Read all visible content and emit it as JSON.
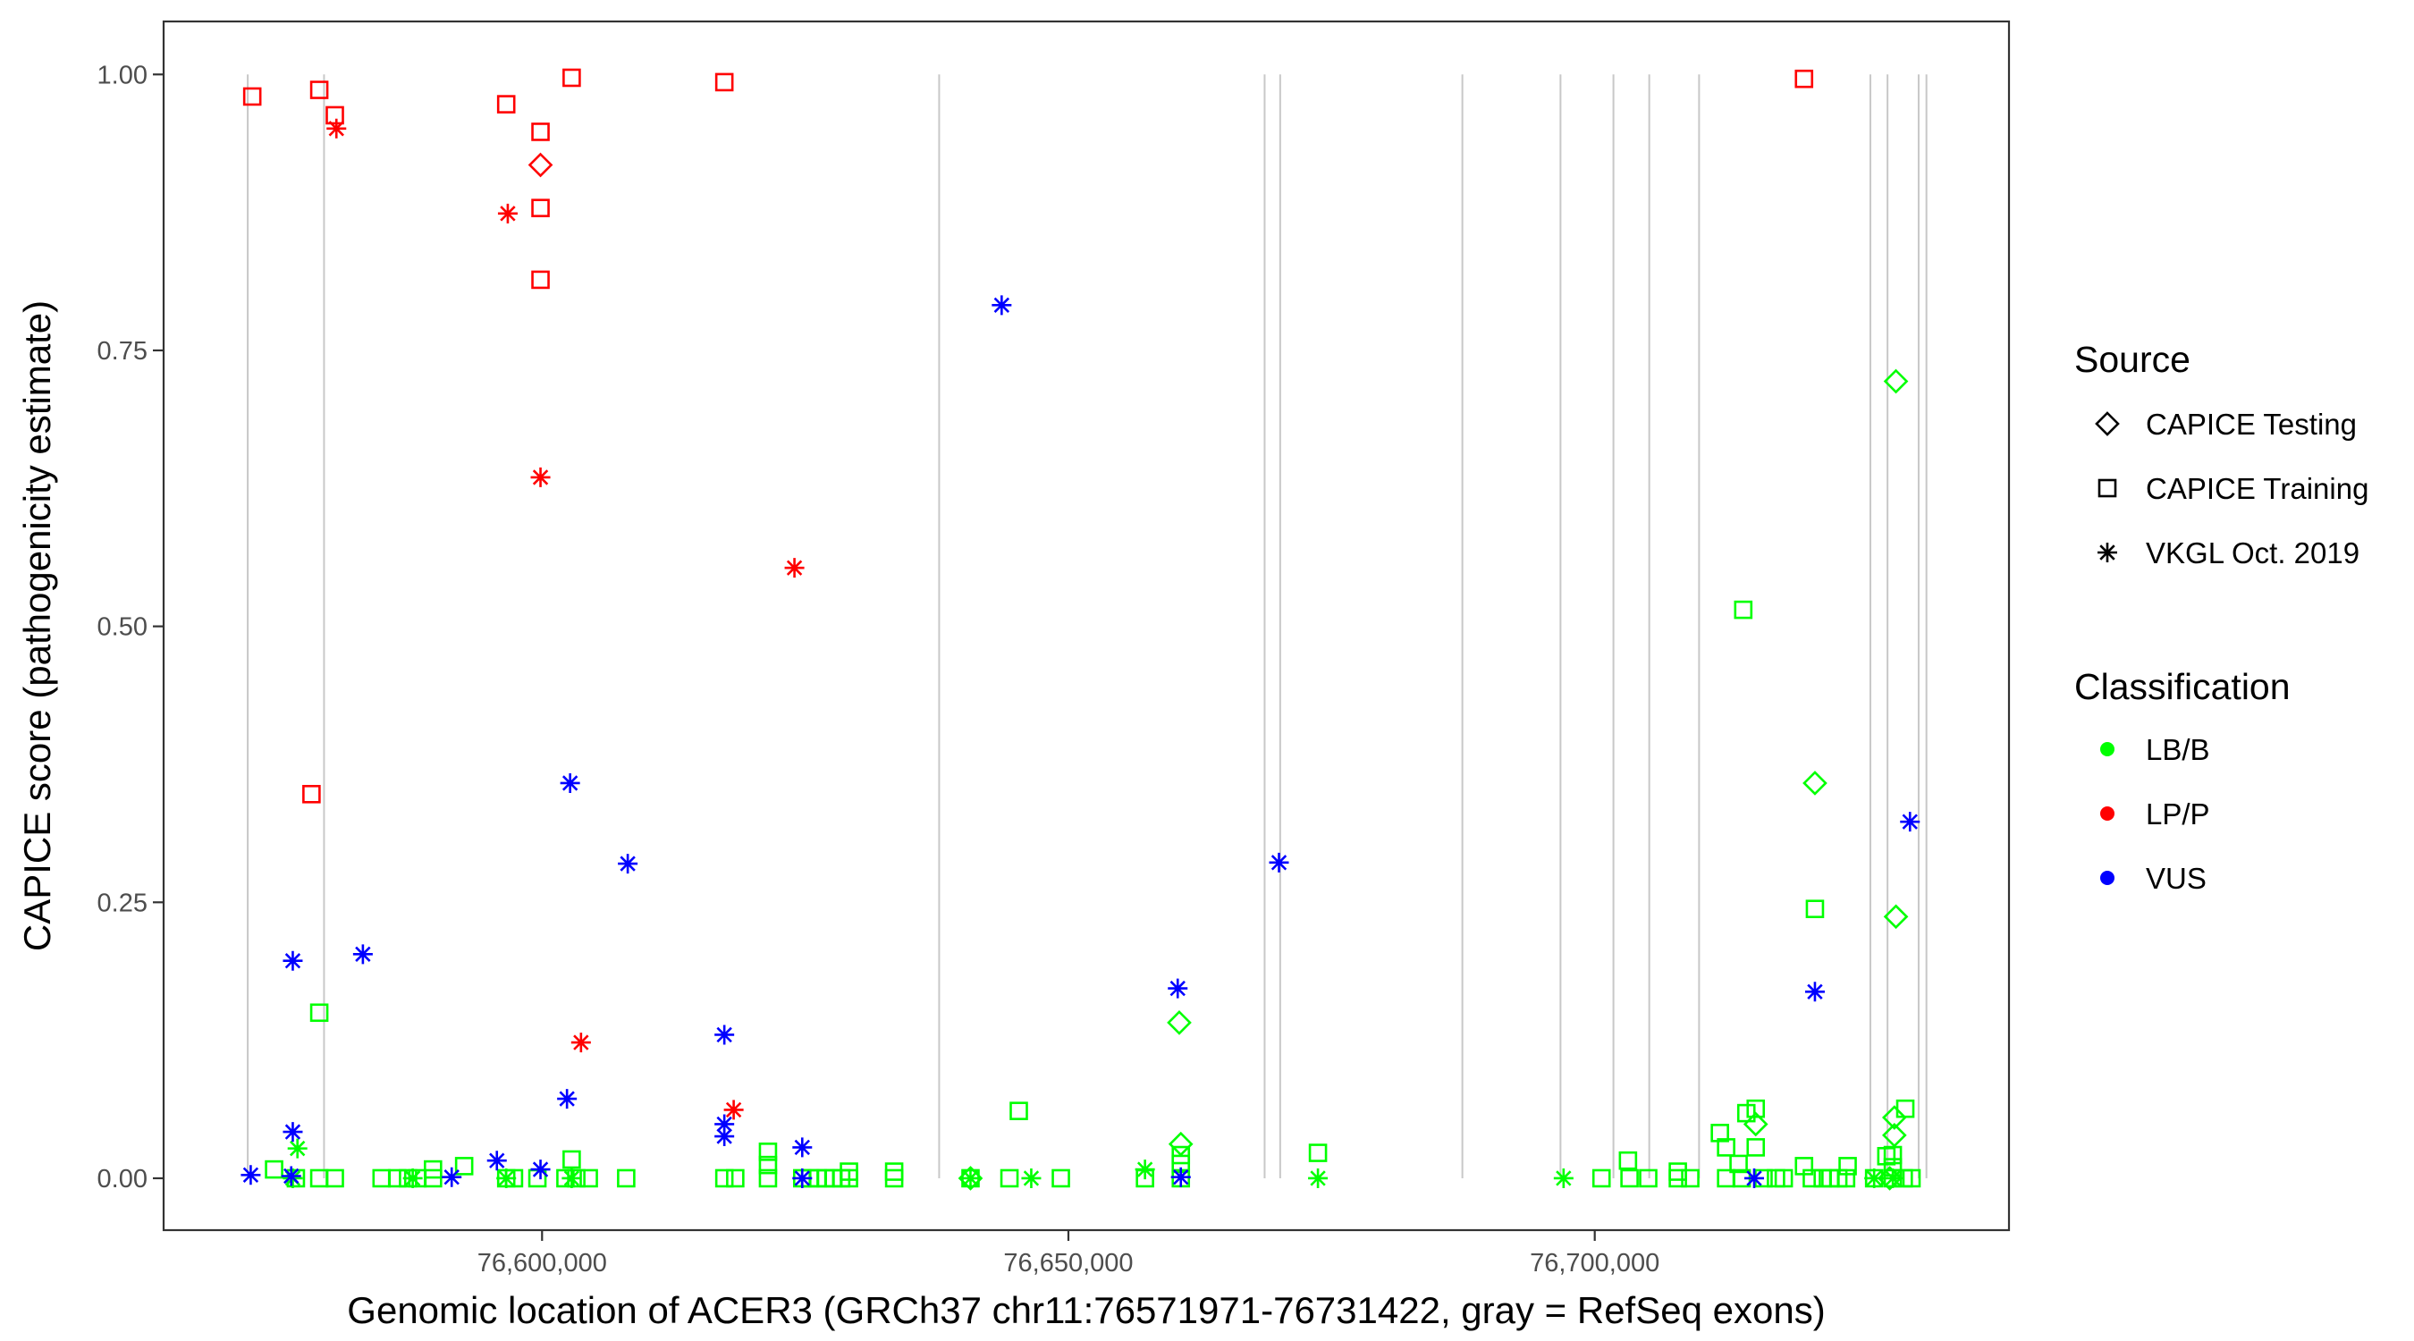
{
  "chart_data": {
    "type": "scatter",
    "xlabel": "Genomic location of ACER3 (GRCh37 chr11:76571971-76731422, gray = RefSeq exons)",
    "ylabel": "CAPICE score (pathogenicity estimate)",
    "xlim": [
      76564050,
      76739350
    ],
    "ylim": [
      -0.047,
      1.048
    ],
    "grid": false,
    "x_ticks": [
      {
        "value": 76600000,
        "label": "76,600,000"
      },
      {
        "value": 76650000,
        "label": "76,650,000"
      },
      {
        "value": 76700000,
        "label": "76,700,000"
      }
    ],
    "y_ticks": [
      {
        "value": 0,
        "label": "0.00"
      },
      {
        "value": 0.25,
        "label": "0.25"
      },
      {
        "value": 0.5,
        "label": "0.50"
      },
      {
        "value": 0.75,
        "label": "0.75"
      },
      {
        "value": 1,
        "label": "1.00"
      }
    ],
    "exon_color": "#C8C8C8",
    "exons": [
      76572041,
      76579290,
      76637722,
      76668639,
      76670118,
      76687426,
      76696746,
      76701775,
      76705178,
      76709911,
      76726183,
      76727811,
      76730769,
      76731509
    ],
    "legend": {
      "position": "right",
      "source_title": "Source",
      "sources": [
        {
          "name": "CAPICE Testing",
          "shape": "diamond"
        },
        {
          "name": "CAPICE Training",
          "shape": "square"
        },
        {
          "name": "VKGL Oct. 2019",
          "shape": "asterisk"
        }
      ],
      "classification_title": "Classification",
      "classes": [
        {
          "name": "LB/B",
          "color": "#00FF00"
        },
        {
          "name": "LP/P",
          "color": "#FF0000"
        },
        {
          "name": "VUS",
          "color": "#0000FF"
        }
      ]
    },
    "series": [
      {
        "source": "CAPICE Training",
        "classification": "LB/B",
        "points": [
          [
            76714108,
            0.515
          ],
          [
            76720916,
            0.244
          ],
          [
            76578836,
            0.15
          ],
          [
            76645288,
            0.061
          ],
          [
            76673704,
            0.023
          ],
          [
            76711888,
            0.041
          ],
          [
            76714400,
            0.059
          ],
          [
            76715292,
            0.063
          ],
          [
            76729500,
            0.063
          ],
          [
            76712480,
            0.028
          ],
          [
            76715292,
            0.028
          ],
          [
            76703156,
            0.016
          ],
          [
            76574544,
            0.008
          ],
          [
            76602812,
            0.017
          ],
          [
            76621460,
            0.024
          ],
          [
            76621460,
            0.012
          ],
          [
            76592600,
            0.011
          ],
          [
            76589640,
            0.008
          ],
          [
            76629156,
            0.006
          ],
          [
            76633448,
            0.006
          ],
          [
            76660680,
            0.021
          ],
          [
            76660680,
            0.013
          ],
          [
            76713664,
            0.013
          ],
          [
            76724024,
            0.011
          ],
          [
            76719880,
            0.011
          ],
          [
            76728316,
            0.01
          ],
          [
            76728316,
            0.021
          ],
          [
            76707892,
            0.006
          ],
          [
            76727700,
            0.02
          ],
          [
            76576616,
            0
          ],
          [
            76578836,
            0
          ],
          [
            76580316,
            0
          ],
          [
            76584756,
            0
          ],
          [
            76586236,
            0
          ],
          [
            76587272,
            0
          ],
          [
            76588160,
            0
          ],
          [
            76589640,
            0
          ],
          [
            76596596,
            0
          ],
          [
            76597336,
            0
          ],
          [
            76599556,
            0
          ],
          [
            76602220,
            0
          ],
          [
            76603256,
            0
          ],
          [
            76604440,
            0
          ],
          [
            76607992,
            0
          ],
          [
            76617316,
            0
          ],
          [
            76618352,
            0
          ],
          [
            76621460,
            0
          ],
          [
            76624716,
            0
          ],
          [
            76625456,
            0
          ],
          [
            76626196,
            0
          ],
          [
            76626936,
            0
          ],
          [
            76627676,
            0
          ],
          [
            76628416,
            0
          ],
          [
            76629156,
            0
          ],
          [
            76633448,
            0
          ],
          [
            76640700,
            0
          ],
          [
            76644400,
            0
          ],
          [
            76649284,
            0
          ],
          [
            76657276,
            0
          ],
          [
            76660680,
            0
          ],
          [
            76700640,
            0
          ],
          [
            76703304,
            0
          ],
          [
            76705080,
            0
          ],
          [
            76707892,
            0
          ],
          [
            76709076,
            0
          ],
          [
            76712480,
            0
          ],
          [
            76713960,
            0
          ],
          [
            76716032,
            0
          ],
          [
            76717216,
            0
          ],
          [
            76717956,
            0
          ],
          [
            76720620,
            0
          ],
          [
            76721656,
            0
          ],
          [
            76722396,
            0
          ],
          [
            76723136,
            0
          ],
          [
            76723876,
            0
          ],
          [
            76726540,
            0
          ],
          [
            76728316,
            0
          ],
          [
            76729352,
            0
          ],
          [
            76730092,
            0
          ]
        ]
      },
      {
        "source": "CAPICE Testing",
        "classification": "LB/B",
        "points": [
          [
            76728612,
            0.722
          ],
          [
            76720916,
            0.358
          ],
          [
            76728612,
            0.237
          ],
          [
            76660532,
            0.141
          ],
          [
            76715292,
            0.049
          ],
          [
            76728464,
            0.055
          ],
          [
            76728464,
            0.039
          ],
          [
            76660680,
            0.031
          ],
          [
            76640700,
            0
          ],
          [
            76728020,
            0
          ]
        ]
      },
      {
        "source": "VKGL Oct. 2019",
        "classification": "LB/B",
        "points": [
          [
            76576764,
            0.027
          ],
          [
            76576320,
            0
          ],
          [
            76587716,
            0
          ],
          [
            76596596,
            0
          ],
          [
            76602812,
            0
          ],
          [
            76640700,
            0
          ],
          [
            76646472,
            0
          ],
          [
            76657276,
            0.008
          ],
          [
            76673704,
            0
          ],
          [
            76697040,
            0
          ],
          [
            76726540,
            0
          ],
          [
            76728316,
            0
          ]
        ]
      },
      {
        "source": "CAPICE Training",
        "classification": "LP/P",
        "points": [
          [
            76572472,
            0.98
          ],
          [
            76578836,
            0.986
          ],
          [
            76580316,
            0.963
          ],
          [
            76596596,
            0.973
          ],
          [
            76599852,
            0.948
          ],
          [
            76602812,
            0.997
          ],
          [
            76617316,
            0.993
          ],
          [
            76599852,
            0.879
          ],
          [
            76599852,
            0.814
          ],
          [
            76578096,
            0.348
          ],
          [
            76719880,
            0.996
          ]
        ]
      },
      {
        "source": "CAPICE Testing",
        "classification": "LP/P",
        "points": [
          [
            76599852,
            0.918
          ]
        ]
      },
      {
        "source": "VKGL Oct. 2019",
        "classification": "LP/P",
        "points": [
          [
            76580464,
            0.951
          ],
          [
            76596744,
            0.874
          ],
          [
            76599852,
            0.635
          ],
          [
            76623976,
            0.553
          ],
          [
            76603700,
            0.123
          ],
          [
            76618204,
            0.062
          ]
        ]
      },
      {
        "source": "VKGL Oct. 2019",
        "classification": "VUS",
        "points": [
          [
            76643660,
            0.791
          ],
          [
            76602664,
            0.358
          ],
          [
            76608140,
            0.285
          ],
          [
            76670004,
            0.286
          ],
          [
            76576320,
            0.197
          ],
          [
            76582980,
            0.203
          ],
          [
            76660384,
            0.172
          ],
          [
            76720916,
            0.169
          ],
          [
            76729944,
            0.323
          ],
          [
            76617316,
            0.13
          ],
          [
            76602368,
            0.072
          ],
          [
            76617316,
            0.049
          ],
          [
            76617316,
            0.038
          ],
          [
            76576320,
            0.042
          ],
          [
            76624716,
            0.028
          ],
          [
            76595708,
            0.016
          ],
          [
            76599852,
            0.008
          ],
          [
            76572324,
            0.003
          ],
          [
            76576172,
            0.002
          ],
          [
            76591416,
            0.001
          ],
          [
            76624716,
            0
          ],
          [
            76660680,
            0.001
          ],
          [
            76715144,
            0
          ]
        ]
      }
    ]
  }
}
